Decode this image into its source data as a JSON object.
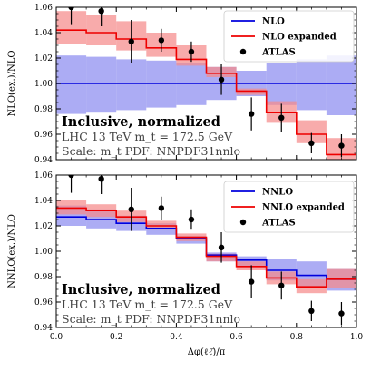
{
  "chart_data": [
    {
      "type": "line",
      "xlabel": "Δφ(ℓℓ̄)/π",
      "ylabel": "NLO(ex.)/NLO",
      "xlim": [
        0.0,
        1.0
      ],
      "ylim": [
        0.94,
        1.06
      ],
      "xticks": [
        "0.0",
        "0.2",
        "0.4",
        "0.6",
        "0.8",
        "1.0"
      ],
      "yticks": [
        "0.94",
        "0.96",
        "0.98",
        "1.00",
        "1.02",
        "1.04",
        "1.06"
      ],
      "bin_edges": [
        0.0,
        0.1,
        0.2,
        0.3,
        0.4,
        0.5,
        0.6,
        0.7,
        0.8,
        0.9,
        1.0
      ],
      "legend_position": "top-right",
      "annotations": [
        "Inclusive, normalized",
        "LHC 13 TeV m_t = 172.5 GeV",
        "Scale: m_t PDF: NNPDF31nnlo"
      ],
      "series": [
        {
          "name": "NLO",
          "kind": "step",
          "color": "#0000dd",
          "band_color": "#8c8cf0",
          "values": [
            1.0,
            1.0,
            1.0,
            1.0,
            1.0,
            1.0,
            1.0,
            1.0,
            1.0,
            1.0
          ],
          "band_low": [
            0.976,
            0.977,
            0.979,
            0.981,
            0.983,
            0.987,
            0.99,
            0.983,
            0.979,
            0.975
          ],
          "band_high": [
            1.022,
            1.021,
            1.019,
            1.018,
            1.016,
            1.013,
            1.01,
            1.016,
            1.019,
            1.022
          ]
        },
        {
          "name": "NLO expanded",
          "kind": "step",
          "color": "#ee0000",
          "band_color": "#f58a8a",
          "values": [
            1.042,
            1.04,
            1.035,
            1.028,
            1.019,
            1.008,
            0.994,
            0.977,
            0.96,
            0.944
          ],
          "band_low": [
            1.031,
            1.03,
            1.026,
            1.021,
            1.014,
            1.005,
            0.991,
            0.969,
            0.953,
            0.94
          ],
          "band_high": [
            1.057,
            1.054,
            1.049,
            1.04,
            1.03,
            1.013,
            0.996,
            0.986,
            0.971,
            0.957
          ]
        },
        {
          "name": "ATLAS",
          "kind": "points",
          "x": [
            0.05,
            0.15,
            0.25,
            0.35,
            0.45,
            0.55,
            0.65,
            0.75,
            0.85,
            0.95
          ],
          "values": [
            1.06,
            1.057,
            1.033,
            1.034,
            1.025,
            1.003,
            0.976,
            0.973,
            0.953,
            0.951
          ],
          "err": [
            0.014,
            0.012,
            0.017,
            0.009,
            0.008,
            0.012,
            0.013,
            0.011,
            0.008,
            0.009
          ]
        }
      ]
    },
    {
      "type": "line",
      "xlabel": "Δφ(ℓℓ̄)/π",
      "ylabel": "NNLO(ex.)/NLO",
      "xlim": [
        0.0,
        1.0
      ],
      "ylim": [
        0.94,
        1.06
      ],
      "xticks": [
        "0.0",
        "0.2",
        "0.4",
        "0.6",
        "0.8",
        "1.0"
      ],
      "yticks": [
        "0.94",
        "0.96",
        "0.98",
        "1.00",
        "1.02",
        "1.04",
        "1.06"
      ],
      "bin_edges": [
        0.0,
        0.1,
        0.2,
        0.3,
        0.4,
        0.5,
        0.6,
        0.7,
        0.8,
        0.9,
        1.0
      ],
      "legend_position": "top-right",
      "annotations": [
        "Inclusive, normalized",
        "LHC 13 TeV m_t = 172.5 GeV",
        "Scale: m_t PDF: NNPDF31nnlo"
      ],
      "series": [
        {
          "name": "NNLO",
          "kind": "step",
          "color": "#0000dd",
          "band_color": "#8c8cf0",
          "values": [
            1.027,
            1.025,
            1.022,
            1.018,
            1.01,
            0.997,
            0.993,
            0.985,
            0.981,
            0.978
          ],
          "band_low": [
            1.02,
            1.018,
            1.016,
            1.013,
            1.006,
            0.992,
            0.988,
            0.977,
            0.972,
            0.969
          ],
          "band_high": [
            1.036,
            1.033,
            1.028,
            1.022,
            1.012,
            0.999,
            0.996,
            0.994,
            0.992,
            0.986
          ]
        },
        {
          "name": "NNLO expanded",
          "kind": "step",
          "color": "#ee0000",
          "band_color": "#f58a8a",
          "values": [
            1.034,
            1.032,
            1.027,
            1.02,
            1.011,
            0.996,
            0.988,
            0.979,
            0.972,
            0.978
          ],
          "band_low": [
            1.029,
            1.027,
            1.023,
            1.017,
            1.008,
            0.992,
            0.985,
            0.974,
            0.967,
            0.971
          ],
          "band_high": [
            1.04,
            1.037,
            1.032,
            1.024,
            1.014,
            0.998,
            0.992,
            0.984,
            0.978,
            0.986
          ]
        },
        {
          "name": "ATLAS",
          "kind": "points",
          "x": [
            0.05,
            0.15,
            0.25,
            0.35,
            0.45,
            0.55,
            0.65,
            0.75,
            0.85,
            0.95
          ],
          "values": [
            1.06,
            1.057,
            1.033,
            1.034,
            1.025,
            1.003,
            0.976,
            0.973,
            0.953,
            0.951
          ],
          "err": [
            0.014,
            0.012,
            0.017,
            0.009,
            0.008,
            0.012,
            0.013,
            0.011,
            0.008,
            0.009
          ]
        }
      ]
    }
  ]
}
